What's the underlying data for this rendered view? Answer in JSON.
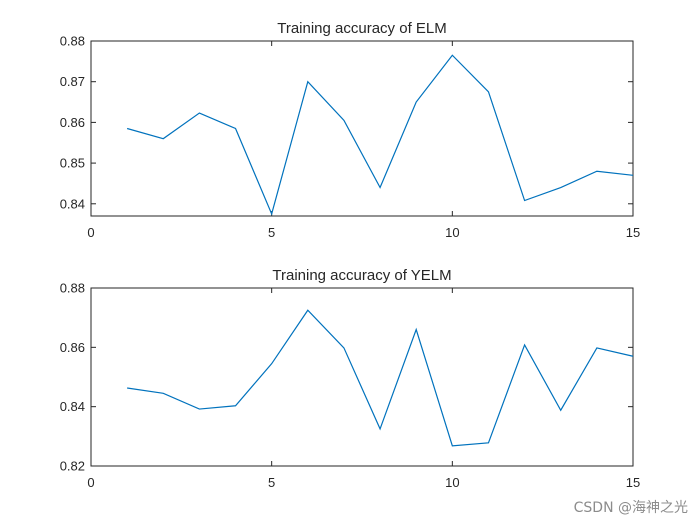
{
  "chart_data": [
    {
      "type": "line",
      "title": "Training accuracy of ELM",
      "xlabel": "",
      "ylabel": "",
      "xlim": [
        0,
        15
      ],
      "ylim": [
        0.837,
        0.88
      ],
      "xticks": [
        0,
        5,
        10,
        15
      ],
      "yticks": [
        0.84,
        0.85,
        0.86,
        0.87,
        0.88
      ],
      "xtick_labels": [
        "0",
        "5",
        "10",
        "15"
      ],
      "ytick_labels": [
        "0.84",
        "0.85",
        "0.86",
        "0.87",
        "0.88"
      ],
      "grid": false,
      "series": [
        {
          "color": "#0072BD",
          "x": [
            1,
            2,
            3,
            4,
            5,
            6,
            7,
            8,
            9,
            10,
            11,
            12,
            13,
            14,
            15
          ],
          "values": [
            0.8585,
            0.856,
            0.8623,
            0.8585,
            0.8375,
            0.87,
            0.8605,
            0.844,
            0.865,
            0.8765,
            0.8675,
            0.8408,
            0.844,
            0.848,
            0.847
          ]
        }
      ]
    },
    {
      "type": "line",
      "title": "Training accuracy of YELM",
      "xlabel": "",
      "ylabel": "",
      "xlim": [
        0,
        15
      ],
      "ylim": [
        0.82,
        0.88
      ],
      "xticks": [
        0,
        5,
        10,
        15
      ],
      "yticks": [
        0.82,
        0.84,
        0.86,
        0.88
      ],
      "xtick_labels": [
        "0",
        "5",
        "10",
        "15"
      ],
      "ytick_labels": [
        "0.82",
        "0.84",
        "0.86",
        "0.88"
      ],
      "grid": false,
      "series": [
        {
          "color": "#0072BD",
          "x": [
            1,
            2,
            3,
            4,
            5,
            6,
            7,
            8,
            9,
            10,
            11,
            12,
            13,
            14,
            15
          ],
          "values": [
            0.8463,
            0.8445,
            0.8392,
            0.8403,
            0.8545,
            0.8725,
            0.8598,
            0.8325,
            0.866,
            0.8268,
            0.8278,
            0.8608,
            0.8388,
            0.8598,
            0.857
          ]
        }
      ]
    }
  ],
  "watermark": "CSDN @海神之光"
}
